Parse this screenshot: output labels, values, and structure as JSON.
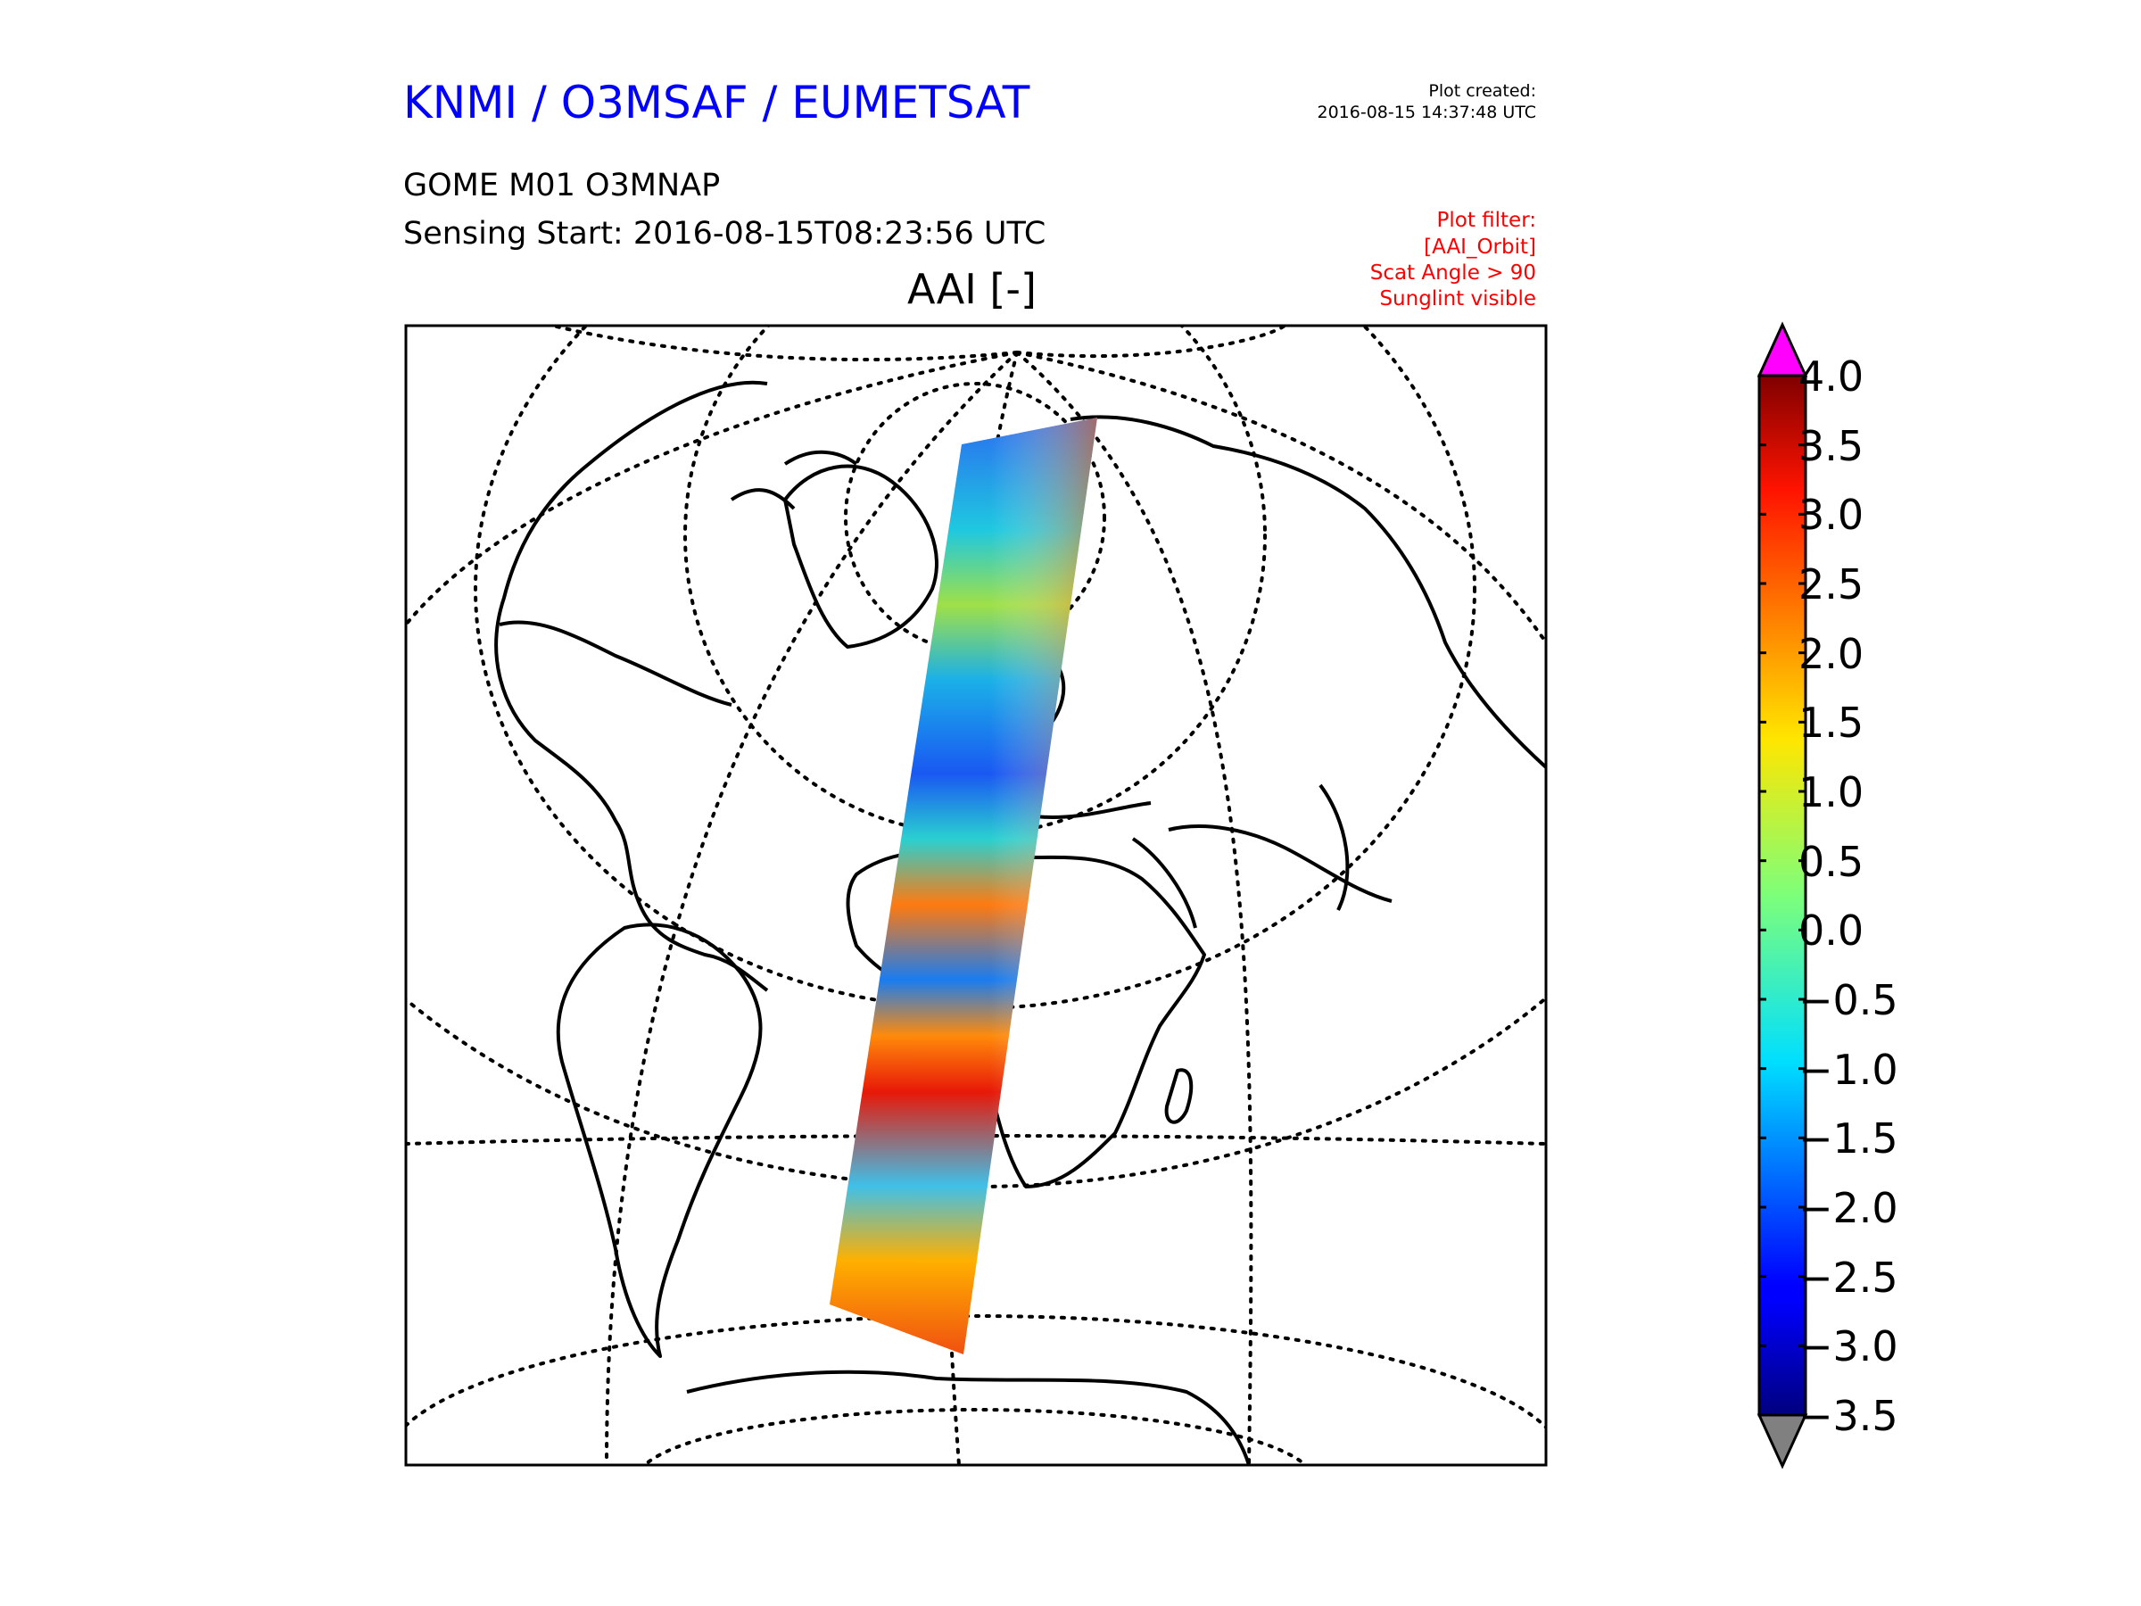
{
  "header": {
    "organization": "KNMI / O3MSAF / EUMETSAT",
    "plot_created_label": "Plot created:",
    "plot_created_value": "2016-08-15 14:37:48 UTC",
    "product": "GOME M01 O3MNAP",
    "sensing_start": "Sensing Start: 2016-08-15T08:23:56 UTC"
  },
  "plot_filter": [
    "Plot filter:",
    "[AAI_Orbit]",
    "Scat Angle > 90",
    "Sunglint visible"
  ],
  "map": {
    "title": "AAI [-]",
    "graticule": "dotted",
    "swath_colormap": "jet"
  },
  "colorbar": {
    "min": -3.5,
    "max": 4.0,
    "ticks": [
      "4.0",
      "3.5",
      "3.0",
      "2.5",
      "2.0",
      "1.5",
      "1.0",
      "0.5",
      "0.0",
      "−0.5",
      "−1.0",
      "−1.5",
      "−2.0",
      "−2.5",
      "−3.0",
      "−3.5"
    ],
    "over_color": "#ff00ff",
    "under_color": "#808080"
  },
  "colors": {
    "title_blue": "#0000ff",
    "filter_red": "#ff0000"
  }
}
